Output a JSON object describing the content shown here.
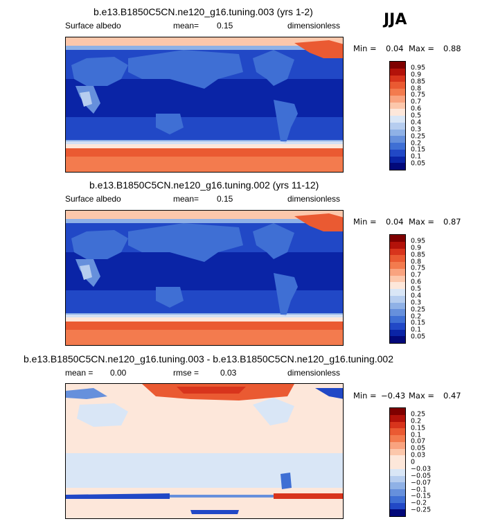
{
  "season": "JJA",
  "panels": [
    {
      "title": "b.e13.B1850C5CN.ne120_g16.tuning.003 (yrs 1-2)",
      "left": "Surface albedo",
      "mid_label": "mean=",
      "mid_value": "0.15",
      "right": "dimensionless",
      "min_label": "Min =",
      "min_value": "0.04",
      "max_label": "Max =",
      "max_value": "0.88",
      "colorbar_labels": [
        "0.95",
        "0.9",
        "0.85",
        "0.8",
        "0.75",
        "0.7",
        "0.6",
        "0.5",
        "0.4",
        "0.3",
        "0.25",
        "0.2",
        "0.15",
        "0.1",
        "0.05"
      ]
    },
    {
      "title": "b.e13.B1850C5CN.ne120_g16.tuning.002 (yrs 11-12)",
      "left": "Surface albedo",
      "mid_label": "mean=",
      "mid_value": "0.15",
      "right": "dimensionless",
      "min_label": "Min =",
      "min_value": "0.04",
      "max_label": "Max =",
      "max_value": "0.87",
      "colorbar_labels": [
        "0.95",
        "0.9",
        "0.85",
        "0.8",
        "0.75",
        "0.7",
        "0.6",
        "0.5",
        "0.4",
        "0.3",
        "0.25",
        "0.2",
        "0.15",
        "0.1",
        "0.05"
      ]
    },
    {
      "title": "b.e13.B1850C5CN.ne120_g16.tuning.003 - b.e13.B1850C5CN.ne120_g16.tuning.002",
      "left_label": "mean =",
      "left_value": "0.00",
      "mid_label": "rmse =",
      "mid_value": "0.03",
      "right": "dimensionless",
      "min_label": "Min =",
      "min_value": "−0.43",
      "max_label": "Max =",
      "max_value": "0.47",
      "colorbar_labels": [
        "0.25",
        "0.2",
        "0.15",
        "0.1",
        "0.07",
        "0.05",
        "0.03",
        "0",
        "−0.03",
        "−0.05",
        "−0.07",
        "−0.1",
        "−0.15",
        "−0.2",
        "−0.25"
      ]
    }
  ],
  "colors": {
    "albedo_scale": [
      "#7f0000",
      "#b3120a",
      "#d8341c",
      "#ea5a32",
      "#f37b4e",
      "#f9a37f",
      "#fcc7ab",
      "#fde7da",
      "#d9e6f6",
      "#b6cdef",
      "#8fb1e6",
      "#6690dc",
      "#3f6fd4",
      "#2148c6",
      "#0a24a6",
      "#02097a"
    ],
    "diff_scale": [
      "#7f0000",
      "#b3120a",
      "#d8341c",
      "#ea5a32",
      "#f37b4e",
      "#f9a37f",
      "#fcc7ab",
      "#fde7da",
      "#fde7da",
      "#d9e6f6",
      "#b6cdef",
      "#8fb1e6",
      "#6690dc",
      "#3f6fd4",
      "#2148c6",
      "#02097a"
    ]
  }
}
